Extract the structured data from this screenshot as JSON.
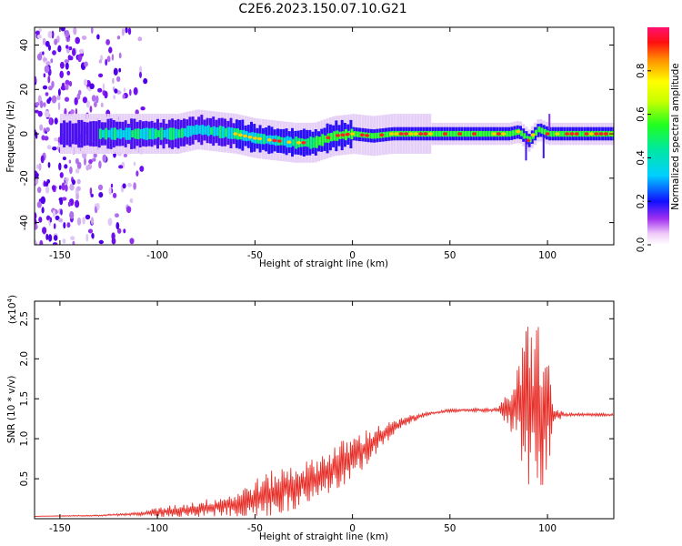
{
  "title": "C2E6.2023.150.07.10.G21",
  "chart_data": [
    {
      "type": "heatmap",
      "xlabel": "Height of straight line (km)",
      "ylabel": "Frequency (Hz)",
      "xlim": [
        -163,
        134
      ],
      "ylim": [
        -50,
        48
      ],
      "xticks": [
        -150,
        -100,
        -50,
        0,
        50,
        100
      ],
      "yticks": [
        -40,
        -20,
        0,
        20,
        40
      ],
      "colorbar": {
        "label": "Normalized spectral amplitude",
        "range": [
          0,
          1
        ],
        "ticks": [
          0.0,
          0.2,
          0.4,
          0.6,
          0.8
        ]
      },
      "ridge": {
        "description": "frequency ridge (Hz) vs height (km)",
        "x": [
          -160,
          -140,
          -120,
          -100,
          -90,
          -80,
          -70,
          -60,
          -50,
          -40,
          -30,
          -20,
          -10,
          0,
          10,
          20,
          50,
          80,
          85,
          90,
          95,
          100,
          110,
          134
        ],
        "y": [
          0,
          0,
          0,
          0,
          0,
          2,
          1,
          0,
          -2,
          -3,
          -4,
          -4,
          -1,
          0,
          -1,
          0,
          0,
          0,
          1,
          -3,
          2,
          0,
          0,
          0
        ]
      }
    },
    {
      "type": "line",
      "xlabel": "Height of straight line (km)",
      "ylabel": "SNR (10 * v/v)",
      "y_multiplier": "(x10",
      "y_multiplier_exp": "4",
      "y_multiplier_close": ")",
      "xlim": [
        -163,
        134
      ],
      "ylim": [
        0,
        2.72
      ],
      "xticks": [
        -150,
        -100,
        -50,
        0,
        50,
        100
      ],
      "yticks": [
        0.5,
        1.0,
        1.5,
        2.0,
        2.5
      ],
      "color": "#e8302a",
      "envelope": {
        "x": [
          -163,
          -130,
          -110,
          -100,
          -80,
          -60,
          -50,
          -40,
          -30,
          -20,
          -10,
          0,
          10,
          20,
          30,
          40,
          50,
          60,
          75,
          80,
          85,
          90,
          95,
          100,
          103,
          110,
          134
        ],
        "base": [
          0.03,
          0.04,
          0.06,
          0.08,
          0.12,
          0.18,
          0.25,
          0.32,
          0.4,
          0.5,
          0.62,
          0.75,
          0.95,
          1.12,
          1.25,
          1.32,
          1.35,
          1.36,
          1.36,
          1.38,
          1.4,
          1.38,
          1.35,
          1.33,
          1.3,
          1.3,
          1.3
        ],
        "amplitude": [
          0.0,
          0.01,
          0.02,
          0.06,
          0.1,
          0.15,
          0.25,
          0.3,
          0.3,
          0.25,
          0.3,
          0.3,
          0.2,
          0.1,
          0.05,
          0.02,
          0.02,
          0.02,
          0.03,
          0.25,
          0.5,
          1.2,
          1.2,
          0.8,
          0.1,
          0.02,
          0.02
        ]
      }
    }
  ]
}
